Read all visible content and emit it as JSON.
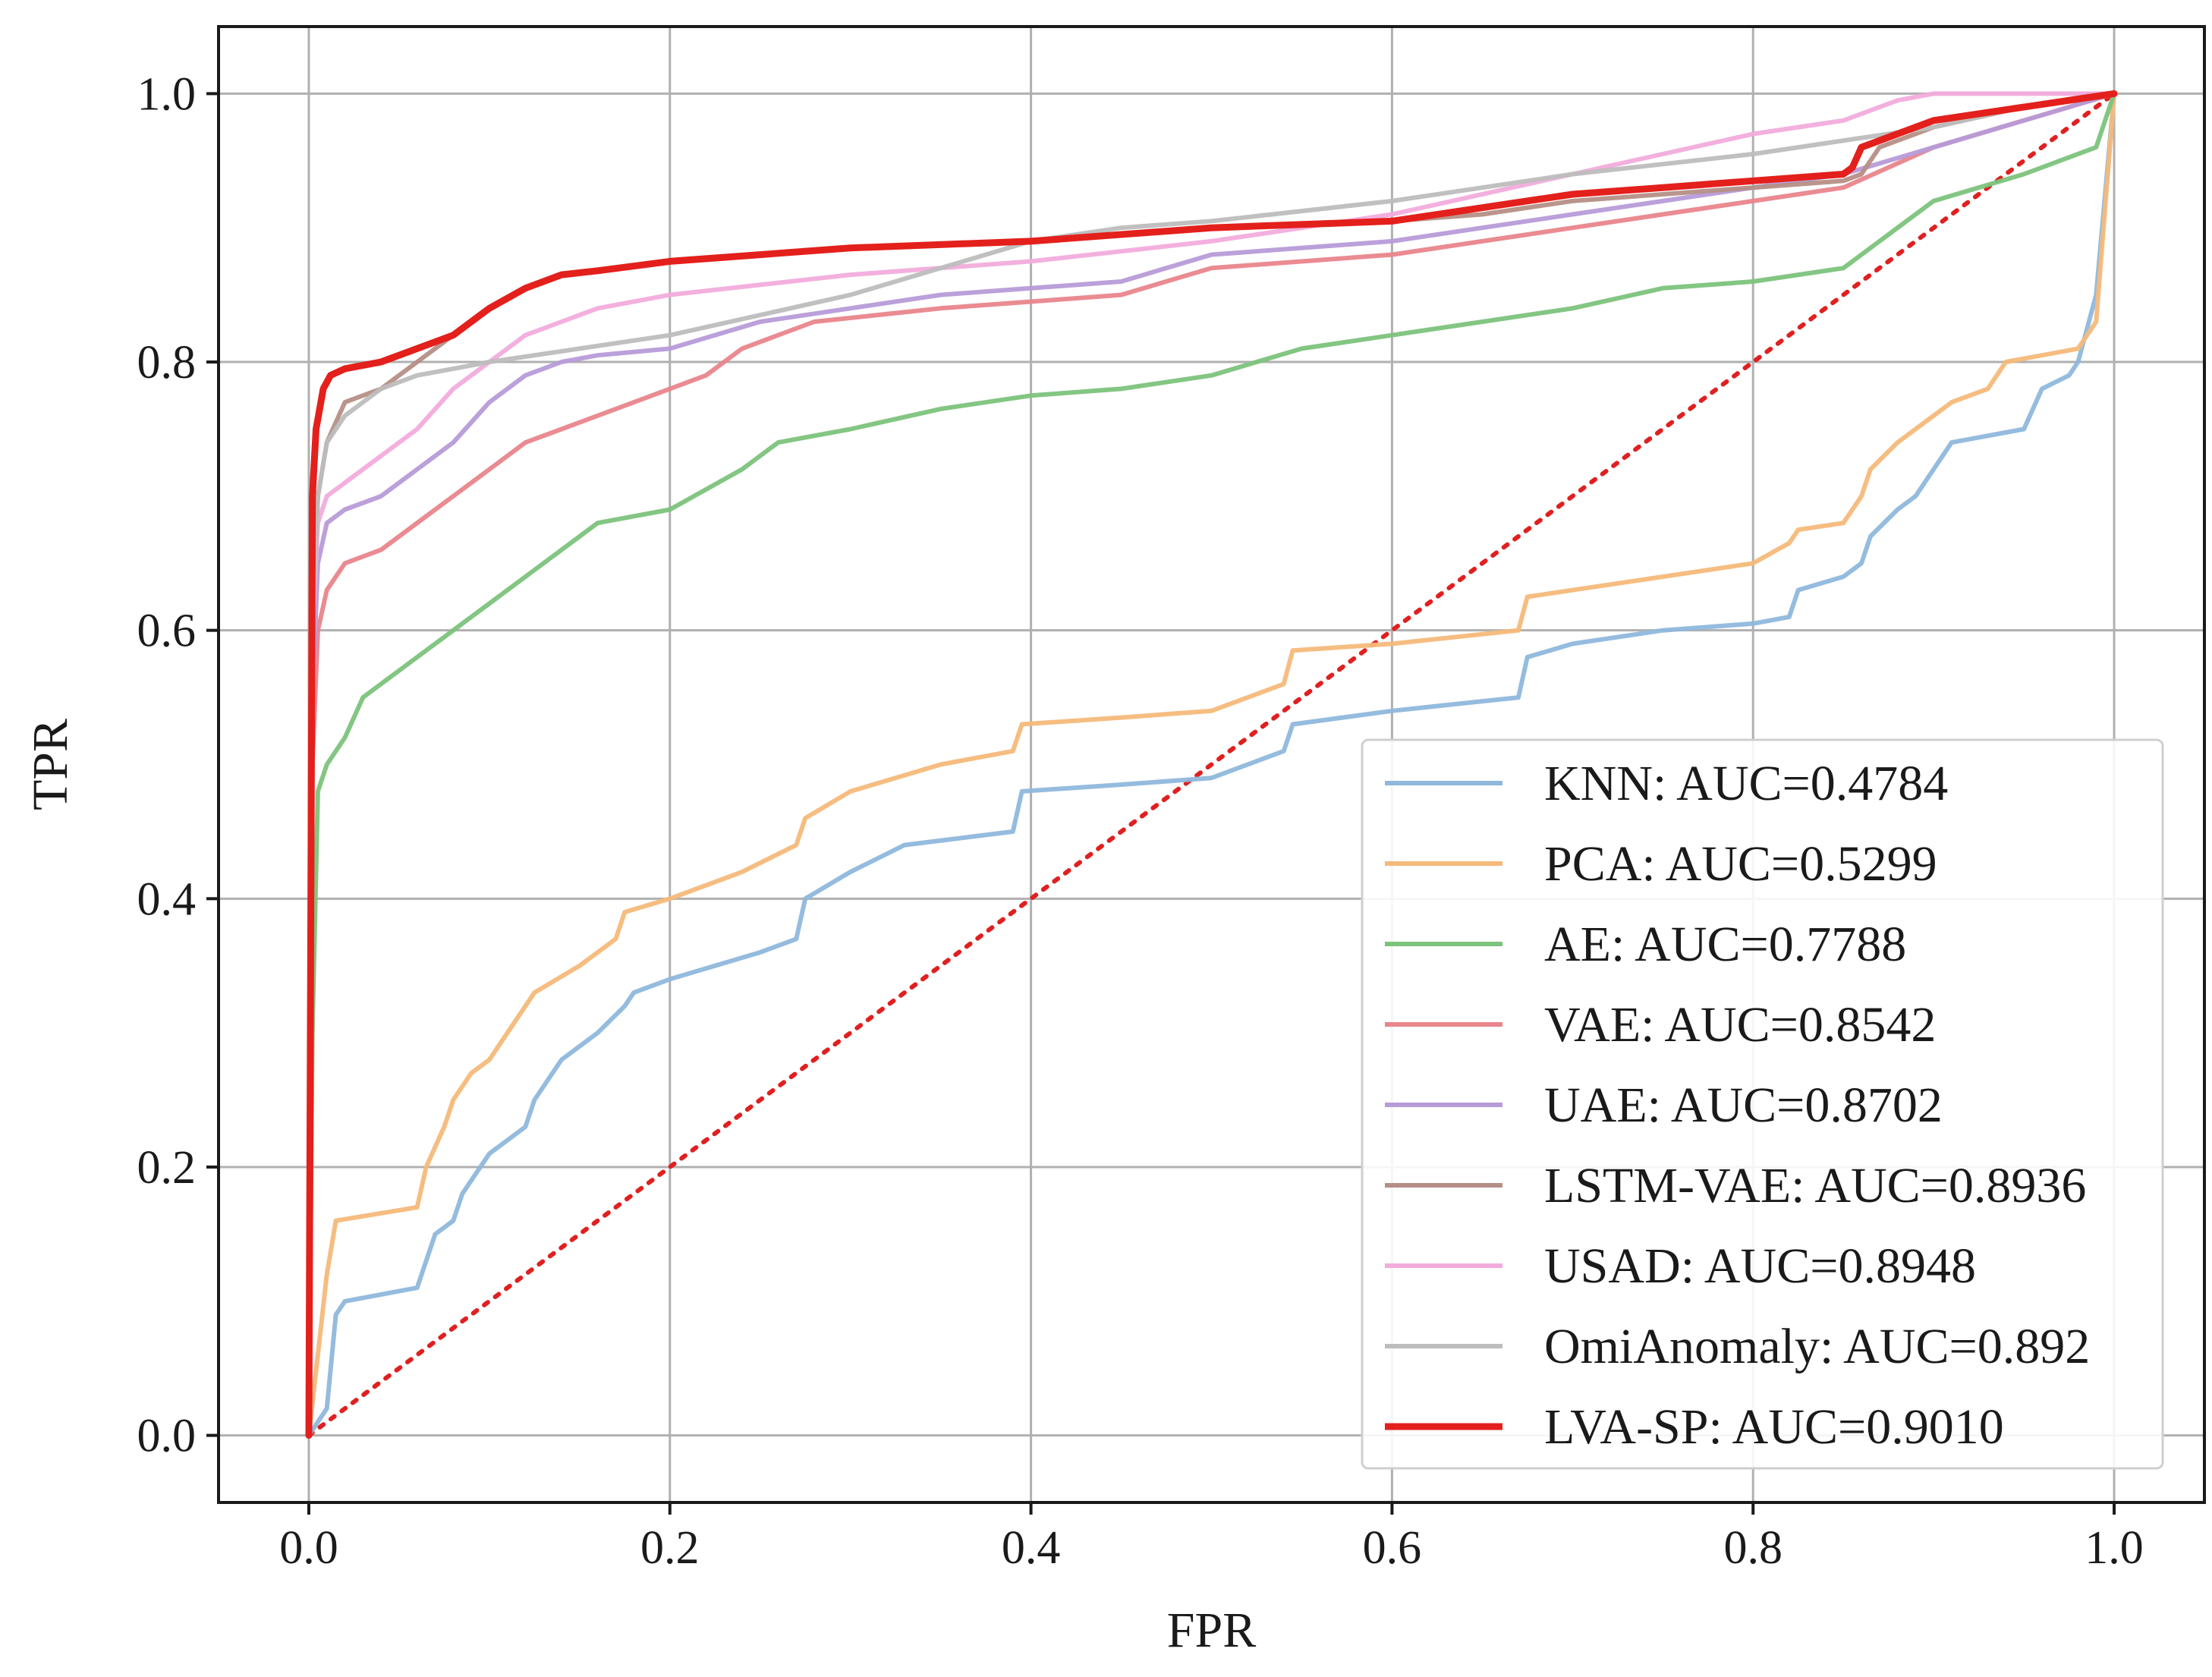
{
  "chart_data": {
    "type": "line",
    "title": "",
    "xlabel": "FPR",
    "ylabel": "TPR",
    "xlim": [
      -0.05,
      1.05
    ],
    "ylim": [
      -0.05,
      1.05
    ],
    "xticks": [
      0.0,
      0.2,
      0.4,
      0.6,
      0.8,
      1.0
    ],
    "yticks": [
      0.0,
      0.2,
      0.4,
      0.6,
      0.8,
      1.0
    ],
    "xtick_labels": [
      "0.0",
      "0.2",
      "0.4",
      "0.6",
      "0.8",
      "1.0"
    ],
    "ytick_labels": [
      "0.0",
      "0.2",
      "0.4",
      "0.6",
      "0.8",
      "1.0"
    ],
    "grid": true,
    "legend_position": "lower-right",
    "diagonal": {
      "color": "#e02020",
      "style": "dotted",
      "x": [
        0,
        1
      ],
      "y": [
        0,
        1
      ]
    },
    "series": [
      {
        "name": "KNN",
        "legend": "KNN: AUC=0.4784",
        "color": "#8fb8dc",
        "bold": false,
        "x": [
          0,
          0.01,
          0.015,
          0.02,
          0.06,
          0.065,
          0.07,
          0.08,
          0.085,
          0.09,
          0.1,
          0.11,
          0.12,
          0.125,
          0.14,
          0.16,
          0.175,
          0.18,
          0.2,
          0.25,
          0.27,
          0.275,
          0.3,
          0.33,
          0.39,
          0.395,
          0.45,
          0.5,
          0.54,
          0.545,
          0.6,
          0.67,
          0.675,
          0.7,
          0.75,
          0.8,
          0.82,
          0.825,
          0.85,
          0.86,
          0.865,
          0.88,
          0.89,
          0.9,
          0.91,
          0.95,
          0.96,
          0.975,
          0.98,
          0.99,
          1.0
        ],
        "y": [
          0,
          0.02,
          0.09,
          0.1,
          0.11,
          0.13,
          0.15,
          0.16,
          0.18,
          0.19,
          0.21,
          0.22,
          0.23,
          0.25,
          0.28,
          0.3,
          0.32,
          0.33,
          0.34,
          0.36,
          0.37,
          0.4,
          0.42,
          0.44,
          0.45,
          0.48,
          0.485,
          0.49,
          0.51,
          0.53,
          0.54,
          0.55,
          0.58,
          0.59,
          0.6,
          0.605,
          0.61,
          0.63,
          0.64,
          0.65,
          0.67,
          0.69,
          0.7,
          0.72,
          0.74,
          0.75,
          0.78,
          0.79,
          0.8,
          0.85,
          1.0
        ]
      },
      {
        "name": "PCA",
        "legend": "PCA: AUC=0.5299",
        "color": "#f5b97a",
        "bold": false,
        "x": [
          0,
          0.01,
          0.015,
          0.06,
          0.065,
          0.075,
          0.08,
          0.09,
          0.1,
          0.11,
          0.12,
          0.125,
          0.15,
          0.17,
          0.175,
          0.2,
          0.24,
          0.27,
          0.275,
          0.3,
          0.35,
          0.39,
          0.395,
          0.45,
          0.5,
          0.54,
          0.545,
          0.6,
          0.67,
          0.675,
          0.75,
          0.8,
          0.82,
          0.825,
          0.85,
          0.86,
          0.865,
          0.88,
          0.89,
          0.9,
          0.91,
          0.93,
          0.94,
          0.98,
          0.99,
          1.0
        ],
        "y": [
          0,
          0.12,
          0.16,
          0.17,
          0.2,
          0.23,
          0.25,
          0.27,
          0.28,
          0.3,
          0.32,
          0.33,
          0.35,
          0.37,
          0.39,
          0.4,
          0.42,
          0.44,
          0.46,
          0.48,
          0.5,
          0.51,
          0.53,
          0.535,
          0.54,
          0.56,
          0.585,
          0.59,
          0.6,
          0.625,
          0.64,
          0.65,
          0.665,
          0.675,
          0.68,
          0.7,
          0.72,
          0.74,
          0.75,
          0.76,
          0.77,
          0.78,
          0.8,
          0.81,
          0.83,
          1.0
        ]
      },
      {
        "name": "AE",
        "legend": "AE: AUC=0.7788",
        "color": "#7cc37c",
        "bold": false,
        "x": [
          0,
          0.002,
          0.005,
          0.01,
          0.02,
          0.03,
          0.04,
          0.06,
          0.08,
          0.1,
          0.12,
          0.14,
          0.16,
          0.2,
          0.24,
          0.26,
          0.3,
          0.35,
          0.4,
          0.45,
          0.5,
          0.55,
          0.6,
          0.65,
          0.7,
          0.75,
          0.8,
          0.85,
          0.86,
          0.88,
          0.9,
          0.95,
          0.99,
          1.0
        ],
        "y": [
          0,
          0.3,
          0.48,
          0.5,
          0.52,
          0.55,
          0.56,
          0.58,
          0.6,
          0.62,
          0.64,
          0.66,
          0.68,
          0.69,
          0.72,
          0.74,
          0.75,
          0.765,
          0.775,
          0.78,
          0.79,
          0.81,
          0.82,
          0.83,
          0.84,
          0.855,
          0.86,
          0.87,
          0.88,
          0.9,
          0.92,
          0.94,
          0.96,
          1.0
        ]
      },
      {
        "name": "VAE",
        "legend": "VAE: AUC=0.8542",
        "color": "#e9858c",
        "bold": false,
        "x": [
          0,
          0.002,
          0.005,
          0.01,
          0.02,
          0.04,
          0.06,
          0.08,
          0.1,
          0.12,
          0.14,
          0.16,
          0.2,
          0.22,
          0.24,
          0.28,
          0.35,
          0.4,
          0.45,
          0.5,
          0.6,
          0.65,
          0.7,
          0.75,
          0.8,
          0.85,
          0.9,
          0.95,
          1.0
        ],
        "y": [
          0,
          0.5,
          0.6,
          0.63,
          0.65,
          0.66,
          0.68,
          0.7,
          0.72,
          0.74,
          0.75,
          0.76,
          0.78,
          0.79,
          0.81,
          0.83,
          0.84,
          0.845,
          0.85,
          0.87,
          0.88,
          0.89,
          0.9,
          0.91,
          0.92,
          0.93,
          0.96,
          0.98,
          1.0
        ]
      },
      {
        "name": "UAE",
        "legend": "UAE: AUC=0.8702",
        "color": "#b79bd8",
        "bold": false,
        "x": [
          0,
          0.002,
          0.005,
          0.01,
          0.02,
          0.04,
          0.06,
          0.08,
          0.1,
          0.12,
          0.14,
          0.16,
          0.2,
          0.25,
          0.3,
          0.35,
          0.4,
          0.45,
          0.5,
          0.6,
          0.65,
          0.7,
          0.75,
          0.8,
          0.85,
          0.9,
          0.95,
          1.0
        ],
        "y": [
          0,
          0.55,
          0.65,
          0.68,
          0.69,
          0.7,
          0.72,
          0.74,
          0.77,
          0.79,
          0.8,
          0.805,
          0.81,
          0.83,
          0.84,
          0.85,
          0.855,
          0.86,
          0.88,
          0.89,
          0.9,
          0.91,
          0.92,
          0.93,
          0.94,
          0.96,
          0.98,
          1.0
        ]
      },
      {
        "name": "LSTM-VAE",
        "legend": "LSTM-VAE: AUC=0.8936",
        "color": "#b58f86",
        "bold": false,
        "x": [
          0,
          0.002,
          0.005,
          0.01,
          0.02,
          0.04,
          0.06,
          0.08,
          0.1,
          0.12,
          0.14,
          0.2,
          0.3,
          0.4,
          0.5,
          0.6,
          0.65,
          0.7,
          0.75,
          0.8,
          0.85,
          0.86,
          0.87,
          0.9,
          0.95,
          1.0
        ],
        "y": [
          0,
          0.6,
          0.7,
          0.74,
          0.77,
          0.78,
          0.8,
          0.82,
          0.84,
          0.855,
          0.865,
          0.875,
          0.885,
          0.89,
          0.9,
          0.905,
          0.91,
          0.92,
          0.925,
          0.93,
          0.935,
          0.94,
          0.96,
          0.975,
          0.99,
          1.0
        ]
      },
      {
        "name": "USAD",
        "legend": "USAD: AUC=0.8948",
        "color": "#f2acdc",
        "bold": false,
        "x": [
          0,
          0.002,
          0.005,
          0.01,
          0.02,
          0.04,
          0.06,
          0.08,
          0.1,
          0.12,
          0.14,
          0.16,
          0.2,
          0.3,
          0.4,
          0.5,
          0.6,
          0.7,
          0.75,
          0.8,
          0.85,
          0.88,
          0.9,
          0.95,
          1.0
        ],
        "y": [
          0,
          0.6,
          0.68,
          0.7,
          0.71,
          0.73,
          0.75,
          0.78,
          0.8,
          0.82,
          0.83,
          0.84,
          0.85,
          0.865,
          0.875,
          0.89,
          0.91,
          0.94,
          0.955,
          0.97,
          0.98,
          0.995,
          1.0,
          1.0,
          1.0
        ]
      },
      {
        "name": "OmiAnomaly",
        "legend": "OmiAnomaly: AUC=0.892",
        "color": "#bdbdbd",
        "bold": false,
        "x": [
          0,
          0.002,
          0.005,
          0.01,
          0.02,
          0.04,
          0.06,
          0.08,
          0.1,
          0.15,
          0.2,
          0.25,
          0.3,
          0.35,
          0.4,
          0.45,
          0.5,
          0.6,
          0.7,
          0.8,
          0.9,
          0.95,
          1.0
        ],
        "y": [
          0,
          0.6,
          0.7,
          0.74,
          0.76,
          0.78,
          0.79,
          0.795,
          0.8,
          0.81,
          0.82,
          0.835,
          0.85,
          0.87,
          0.89,
          0.9,
          0.905,
          0.92,
          0.94,
          0.955,
          0.975,
          0.99,
          1.0
        ]
      },
      {
        "name": "LVA-SP",
        "legend": "LVA-SP: AUC=0.9010",
        "color": "#e3201c",
        "bold": true,
        "x": [
          0,
          0.002,
          0.004,
          0.008,
          0.012,
          0.02,
          0.04,
          0.06,
          0.08,
          0.1,
          0.12,
          0.14,
          0.16,
          0.2,
          0.25,
          0.3,
          0.4,
          0.5,
          0.6,
          0.65,
          0.7,
          0.75,
          0.8,
          0.85,
          0.855,
          0.86,
          0.9,
          0.95,
          1.0
        ],
        "y": [
          0,
          0.7,
          0.75,
          0.78,
          0.79,
          0.795,
          0.8,
          0.81,
          0.82,
          0.84,
          0.855,
          0.865,
          0.868,
          0.875,
          0.88,
          0.885,
          0.89,
          0.9,
          0.905,
          0.915,
          0.925,
          0.93,
          0.935,
          0.94,
          0.945,
          0.96,
          0.98,
          0.99,
          1.0
        ]
      }
    ]
  }
}
